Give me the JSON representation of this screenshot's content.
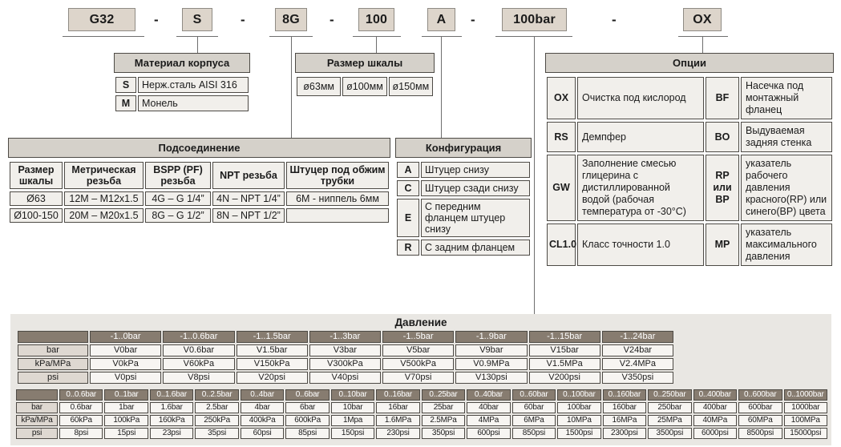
{
  "code": {
    "boxes": [
      "G32",
      "S",
      "8G",
      "100",
      "A",
      "100bar",
      "OX"
    ],
    "separator": "-"
  },
  "material": {
    "title": "Материал корпуса",
    "rows": [
      [
        "S",
        "Нерж.сталь AISI 316"
      ],
      [
        "M",
        "Монель"
      ]
    ]
  },
  "scale_size": {
    "title": "Размер шкалы",
    "rows": [
      [
        "ø63мм",
        "ø100мм",
        "ø150мм"
      ]
    ]
  },
  "connection": {
    "title": "Подсоединение",
    "headers": [
      "Размер шкалы",
      "Метрическая резьба",
      "BSPP (PF) резьба",
      "NPT резьба",
      "Штуцер под обжим трубки"
    ],
    "rows": [
      [
        "Ø63",
        "12M – M12x1.5",
        "4G – G 1/4”",
        "4N – NPT 1/4”",
        "6M - ниппель 6мм"
      ],
      [
        "Ø100-150",
        "20M – M20x1.5",
        "8G – G 1/2”",
        "8N – NPT 1/2”",
        ""
      ]
    ]
  },
  "configuration": {
    "title": "Конфигурация",
    "rows": [
      [
        "A",
        "Штуцер снизу"
      ],
      [
        "C",
        "Штуцер сзади снизу"
      ],
      [
        "E",
        "С передним фланцем штуцер снизу"
      ],
      [
        "R",
        "С задним фланцем"
      ]
    ]
  },
  "options": {
    "title": "Опции",
    "rows": [
      [
        "OX",
        "Очистка под кислород",
        "BF",
        "Насечка под монтажный фланец"
      ],
      [
        "RS",
        "Демпфер",
        "BO",
        "Выдуваемая задняя стенка"
      ],
      [
        "GW",
        "Заполнение смесью глицерина с дистиллированной водой (рабочая температура от -30°C)",
        "RP или BP",
        "указатель рабочего давления красного(RP) или синего(BP) цвета"
      ],
      [
        "CL1.0",
        "Класс точности 1.0",
        "MP",
        "указатель максимального давления"
      ]
    ]
  },
  "pressure": {
    "title": "Давление",
    "table_vacuum": {
      "headers": [
        "",
        "-1..0bar",
        "-1..0.6bar",
        "-1..1.5bar",
        "-1..3bar",
        "-1..5bar",
        "-1..9bar",
        "-1..15bar",
        "-1..24bar"
      ],
      "rows": [
        [
          "bar",
          "V0bar",
          "V0.6bar",
          "V1.5bar",
          "V3bar",
          "V5bar",
          "V9bar",
          "V15bar",
          "V24bar"
        ],
        [
          "kPa/MPa",
          "V0kPa",
          "V60kPa",
          "V150kPa",
          "V300kPa",
          "V500kPa",
          "V0.9MPa",
          "V1.5MPa",
          "V2.4MPa"
        ],
        [
          "psi",
          "V0psi",
          "V8psi",
          "V20psi",
          "V40psi",
          "V70psi",
          "V130psi",
          "V200psi",
          "V350psi"
        ]
      ]
    },
    "table_positive": {
      "headers": [
        "",
        "0..0.6bar",
        "0..1bar",
        "0..1.6bar",
        "0..2.5bar",
        "0..4bar",
        "0..6bar",
        "0..10bar",
        "0..16bar",
        "0..25bar",
        "0..40bar",
        "0..60bar",
        "0..100bar",
        "0..160bar",
        "0..250bar",
        "0..400bar",
        "0..600bar",
        "0..1000bar"
      ],
      "rows": [
        [
          "bar",
          "0.6bar",
          "1bar",
          "1.6bar",
          "2.5bar",
          "4bar",
          "6bar",
          "10bar",
          "16bar",
          "25bar",
          "40bar",
          "60bar",
          "100bar",
          "160bar",
          "250bar",
          "400bar",
          "600bar",
          "1000bar"
        ],
        [
          "kPa/MPa",
          "60kPa",
          "100kPa",
          "160kPa",
          "250kPa",
          "400kPa",
          "600kPa",
          "1Mpa",
          "1.6MPa",
          "2.5MPa",
          "4MPa",
          "6MPa",
          "10MPa",
          "16MPa",
          "25MPa",
          "40MPa",
          "60MPa",
          "100MPa"
        ],
        [
          "psi",
          "8psi",
          "15psi",
          "23psi",
          "35psi",
          "60psi",
          "85psi",
          "150psi",
          "230psi",
          "350psi",
          "600psi",
          "850psi",
          "1500psi",
          "2300psi",
          "3500psi",
          "6000psi",
          "8500psi",
          "15000psi"
        ]
      ]
    }
  },
  "colors": {
    "box_fill": "#ddd5cb",
    "table_header_fill": "#d5d1ca",
    "cell_fill": "#f1efeb",
    "pressure_header_fill": "#877c70",
    "pressure_label_fill": "#ded8d1",
    "section_background": "#e9e7e3",
    "line": "#6e6e6e"
  }
}
